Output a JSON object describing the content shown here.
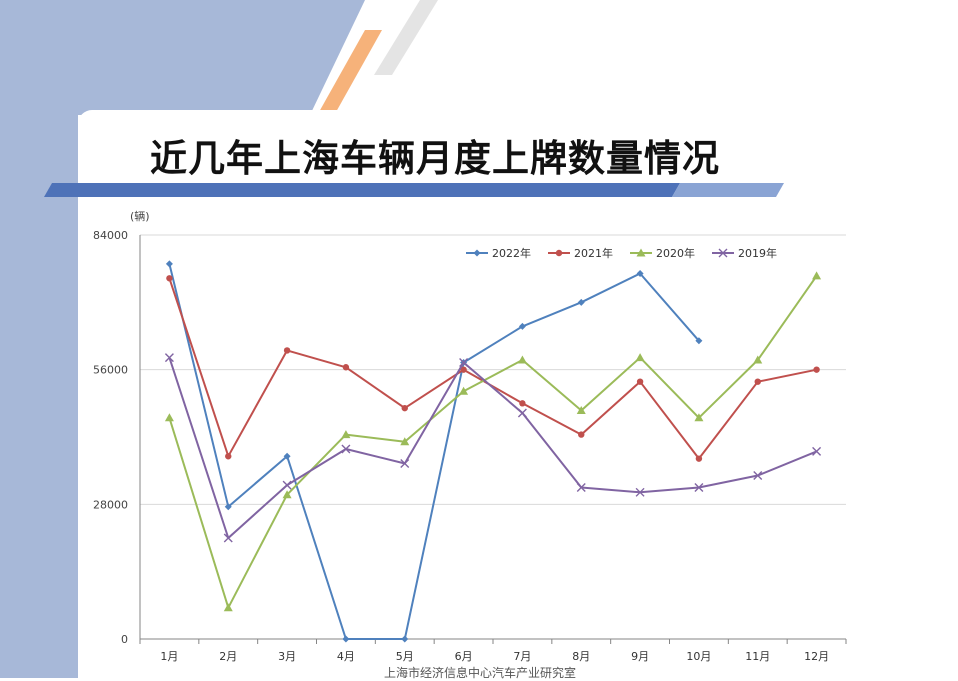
{
  "page": {
    "title": "近几年上海车辆月度上牌数量情况",
    "footer": "上海市经济信息中心汽车产业研究室"
  },
  "colors": {
    "side_panel": "#a7b8d8",
    "stripe_orange": "#f6b27a",
    "stripe_gray": "#e2e2e2",
    "title_bar": "#4e72b8"
  },
  "chart_data": {
    "type": "line",
    "unit_label": "(辆)",
    "categories": [
      "1月",
      "2月",
      "3月",
      "4月",
      "5月",
      "6月",
      "7月",
      "8月",
      "9月",
      "10月",
      "11月",
      "12月"
    ],
    "ylim": [
      0,
      84000
    ],
    "yticks": [
      0,
      28000,
      56000,
      84000
    ],
    "grid": true,
    "legend_position": "top-right",
    "series": [
      {
        "name": "2022年",
        "color": "#4f81bd",
        "marker": "diamond",
        "values": [
          78000,
          27500,
          38000,
          0,
          0,
          57500,
          65000,
          70000,
          76000,
          62000,
          null,
          null
        ]
      },
      {
        "name": "2021年",
        "color": "#c0504d",
        "marker": "circle",
        "values": [
          75000,
          38000,
          60000,
          56500,
          48000,
          56000,
          49000,
          42500,
          53500,
          37500,
          53500,
          56000
        ]
      },
      {
        "name": "2020年",
        "color": "#9bbb59",
        "marker": "triangle",
        "values": [
          46000,
          6500,
          30000,
          42500,
          41000,
          51500,
          58000,
          47500,
          58500,
          46000,
          58000,
          75500
        ]
      },
      {
        "name": "2019年",
        "color": "#8064a2",
        "marker": "x",
        "values": [
          58500,
          21000,
          32000,
          39500,
          36500,
          57500,
          47000,
          31500,
          30500,
          31500,
          34000,
          39000
        ]
      }
    ]
  }
}
